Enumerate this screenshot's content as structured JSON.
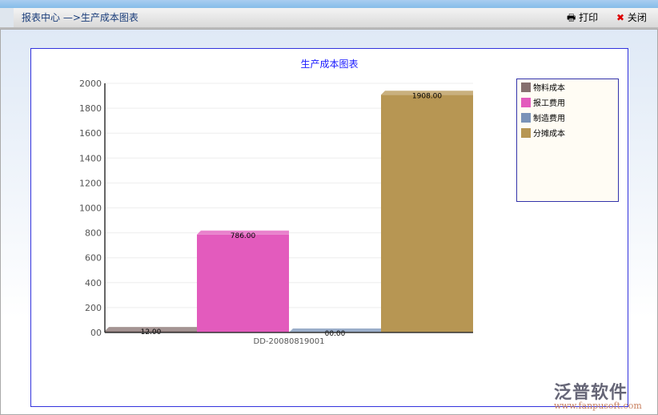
{
  "header": {
    "breadcrumb": "报表中心 —>生产成本图表",
    "print_label": "打印",
    "close_label": "关闭"
  },
  "watermark": {
    "name": "泛普软件",
    "url": "www.fanpusoft.com"
  },
  "chart_data": {
    "type": "bar",
    "title": "生产成本图表",
    "categories": [
      "DD-20080819001"
    ],
    "series": [
      {
        "name": "物料成本",
        "values": [
          12
        ],
        "label": "12.00",
        "color": "#86706f"
      },
      {
        "name": "报工费用",
        "values": [
          786
        ],
        "label": "786.00",
        "color": "#e35bbd"
      },
      {
        "name": "制造费用",
        "values": [
          0
        ],
        "label": "00.00",
        "color": "#7a93b8"
      },
      {
        "name": "分摊成本",
        "values": [
          1908
        ],
        "label": "1908.00",
        "color": "#b79653"
      }
    ],
    "yticks": [
      "00",
      "200",
      "400",
      "600",
      "800",
      "1000",
      "1200",
      "1400",
      "1600",
      "1800",
      "2000"
    ],
    "ylim": [
      0,
      2000
    ],
    "grid": true,
    "legend": "right"
  }
}
